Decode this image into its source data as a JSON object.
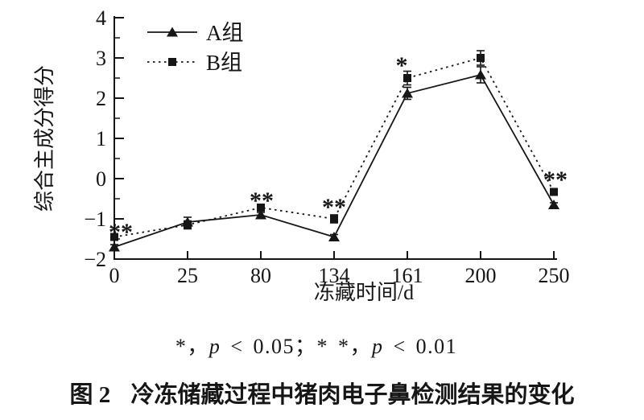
{
  "colors": {
    "ink": "#161616",
    "background": "#ffffff"
  },
  "chart_data": {
    "type": "line",
    "title": "",
    "xlabel": "冻藏时间/d",
    "ylabel": "综合主成分得分",
    "categories": [
      "0",
      "25",
      "80",
      "134",
      "161",
      "200",
      "250"
    ],
    "ylim": [
      -2,
      4
    ],
    "ytick_step": 1,
    "yminor_step": 0.5,
    "grid": false,
    "legend_position": "top-left",
    "series": [
      {
        "name": "A组",
        "marker": "triangle",
        "line": "solid",
        "values": [
          -1.7,
          -1.08,
          -0.9,
          -1.45,
          2.12,
          2.58,
          -0.65
        ],
        "errors": [
          0.06,
          0.12,
          0.06,
          0.06,
          0.15,
          0.2,
          0.05
        ]
      },
      {
        "name": "B组",
        "marker": "square",
        "line": "dotted",
        "values": [
          -1.45,
          -1.15,
          -0.72,
          -1.0,
          2.5,
          3.0,
          -0.33
        ],
        "errors": [
          0.07,
          0.1,
          0.08,
          0.1,
          0.17,
          0.18,
          0.05
        ]
      }
    ],
    "annotations": [
      {
        "series": "B组",
        "index": 0,
        "y": -1.22,
        "dx": 8,
        "text": "**"
      },
      {
        "series": "B组",
        "index": 2,
        "y": -0.44,
        "dx": 1,
        "text": "**"
      },
      {
        "series": "B组",
        "index": 3,
        "y": -0.6,
        "dx": 0,
        "text": "**"
      },
      {
        "series": "B组",
        "index": 4,
        "y": 2.92,
        "dx": -7,
        "text": "*"
      },
      {
        "series": "B组",
        "index": 6,
        "y": 0.08,
        "dx": 2,
        "text": "**"
      }
    ]
  },
  "footnote": {
    "parts": [
      {
        "text": "*，"
      },
      {
        "text": "p"
      },
      {
        "text": " < 0.05；"
      },
      {
        "text": "* *，"
      },
      {
        "text": "p"
      },
      {
        "text": " < 0.01"
      }
    ]
  },
  "caption": {
    "label": "图 2",
    "title": "冷冻储藏过程中猪肉电子鼻检测结果的变化"
  }
}
